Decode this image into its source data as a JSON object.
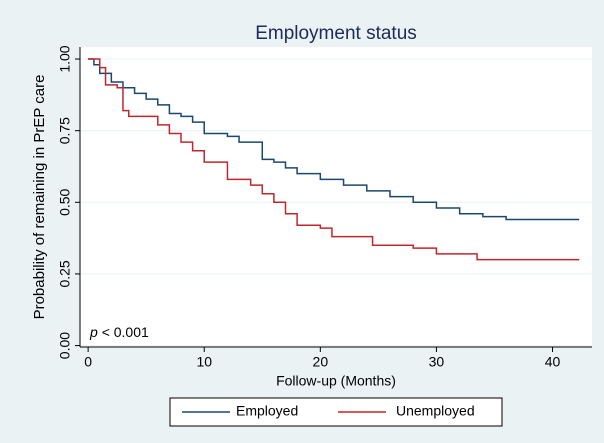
{
  "chart_data": {
    "type": "line",
    "title": "Employment status",
    "xlabel": "Follow-up (Months)",
    "ylabel": "Probability of remaining in PrEP care",
    "annotation": {
      "symbol": "p",
      "text": "< 0.001"
    },
    "xlim": [
      -0.7,
      43.4
    ],
    "ylim": [
      -0.005,
      1.042
    ],
    "xticks": [
      0,
      10,
      20,
      30,
      40
    ],
    "yticks": [
      {
        "value": 0,
        "label": "0.00"
      },
      {
        "value": 0.25,
        "label": "0.25"
      },
      {
        "value": 0.5,
        "label": "0.50"
      },
      {
        "value": 0.75,
        "label": "0.75"
      },
      {
        "value": 1,
        "label": "1.00"
      }
    ],
    "grid": true,
    "step": true,
    "series": [
      {
        "name": "Employed",
        "color": "#1a476f",
        "x": [
          0,
          0.5,
          1,
          2,
          3,
          4,
          5,
          6,
          7,
          8,
          9,
          10,
          12,
          13,
          15,
          16,
          17,
          18,
          20,
          22,
          24,
          26,
          28,
          30,
          32,
          34,
          36,
          42.3
        ],
        "values": [
          1,
          0.98,
          0.95,
          0.92,
          0.9,
          0.88,
          0.86,
          0.84,
          0.81,
          0.8,
          0.78,
          0.74,
          0.73,
          0.71,
          0.65,
          0.64,
          0.62,
          0.6,
          0.58,
          0.56,
          0.54,
          0.52,
          0.5,
          0.48,
          0.46,
          0.45,
          0.44,
          0.44
        ]
      },
      {
        "name": "Unemployed",
        "color": "#c0272d",
        "x": [
          0,
          1,
          1.5,
          2.5,
          3,
          3.5,
          6,
          7,
          8,
          9,
          10,
          12,
          14,
          15,
          16,
          17,
          18,
          20,
          21,
          24.5,
          28,
          30,
          33.5,
          42.3
        ],
        "values": [
          1,
          0.97,
          0.91,
          0.9,
          0.82,
          0.8,
          0.77,
          0.74,
          0.71,
          0.68,
          0.64,
          0.58,
          0.56,
          0.53,
          0.5,
          0.46,
          0.42,
          0.41,
          0.38,
          0.35,
          0.34,
          0.32,
          0.3,
          0.3
        ]
      }
    ]
  }
}
